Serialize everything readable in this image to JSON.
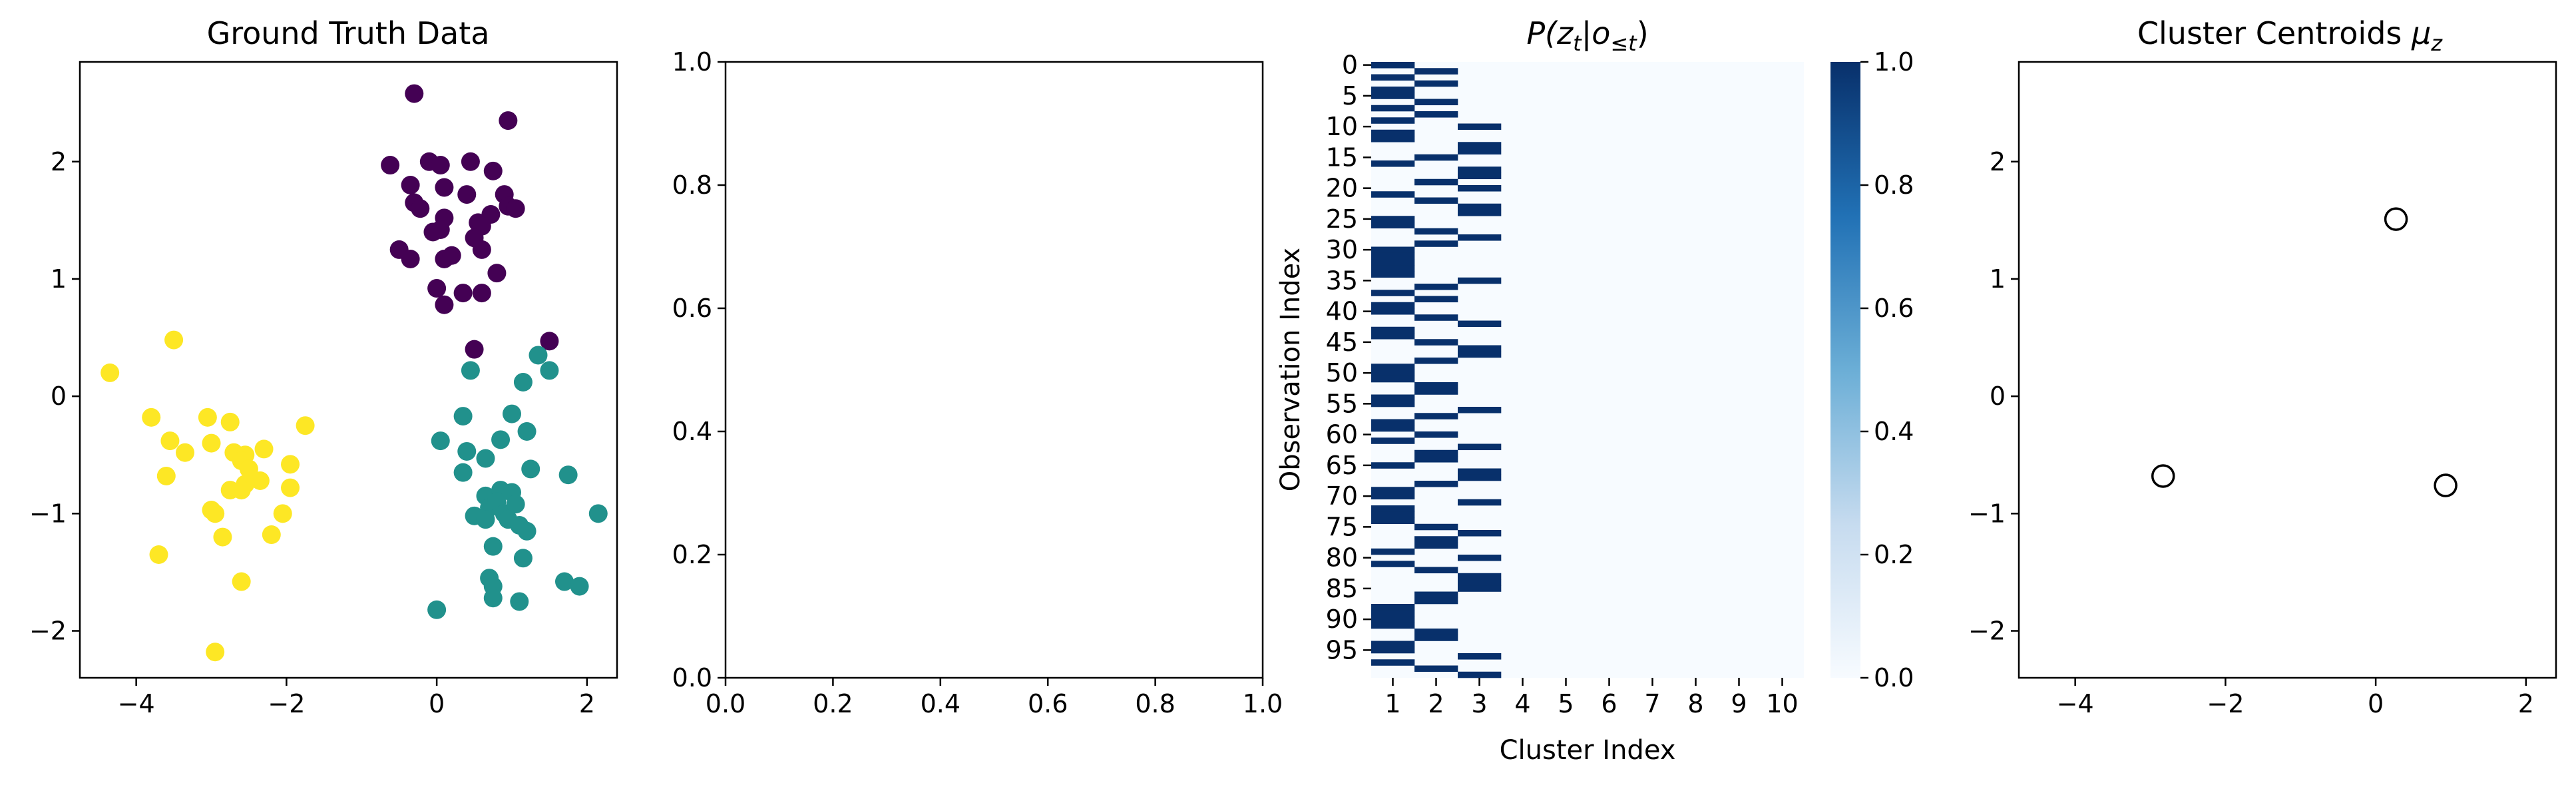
{
  "chart_data": [
    {
      "id": "ground-truth",
      "type": "scatter",
      "title": "Ground Truth Data",
      "xlim": [
        -4.75,
        2.4
      ],
      "ylim": [
        -2.4,
        2.85
      ],
      "xticks": [
        -4,
        -2,
        0,
        2
      ],
      "yticks": [
        -2,
        -1,
        0,
        1,
        2
      ],
      "xtick_labels": [
        "−4",
        "−2",
        "0",
        "2"
      ],
      "ytick_labels": [
        "−2",
        "−1",
        "0",
        "1",
        "2"
      ],
      "series": [
        {
          "color": "#440154",
          "points": [
            [
              -0.3,
              2.58
            ],
            [
              0.95,
              2.35
            ],
            [
              -0.62,
              1.97
            ],
            [
              -0.1,
              2.0
            ],
            [
              0.05,
              1.97
            ],
            [
              0.45,
              2.0
            ],
            [
              0.75,
              1.92
            ],
            [
              -0.35,
              1.8
            ],
            [
              0.1,
              1.78
            ],
            [
              -0.3,
              1.65
            ],
            [
              0.4,
              1.72
            ],
            [
              0.9,
              1.72
            ],
            [
              -0.22,
              1.6
            ],
            [
              0.72,
              1.55
            ],
            [
              0.95,
              1.62
            ],
            [
              1.05,
              1.6
            ],
            [
              0.1,
              1.52
            ],
            [
              0.55,
              1.48
            ],
            [
              0.6,
              1.45
            ],
            [
              -0.05,
              1.4
            ],
            [
              0.05,
              1.42
            ],
            [
              0.5,
              1.35
            ],
            [
              -0.5,
              1.25
            ],
            [
              -0.35,
              1.17
            ],
            [
              0.1,
              1.17
            ],
            [
              0.2,
              1.2
            ],
            [
              0.6,
              1.25
            ],
            [
              0.8,
              1.05
            ],
            [
              0.0,
              0.92
            ],
            [
              0.35,
              0.88
            ],
            [
              0.6,
              0.88
            ],
            [
              0.1,
              0.78
            ],
            [
              0.5,
              0.4
            ],
            [
              1.5,
              0.47
            ]
          ]
        },
        {
          "color": "#21918c",
          "points": [
            [
              0.45,
              0.22
            ],
            [
              1.35,
              0.35
            ],
            [
              1.5,
              0.22
            ],
            [
              1.15,
              0.12
            ],
            [
              0.35,
              -0.17
            ],
            [
              1.0,
              -0.15
            ],
            [
              0.05,
              -0.38
            ],
            [
              0.4,
              -0.47
            ],
            [
              0.85,
              -0.37
            ],
            [
              1.2,
              -0.3
            ],
            [
              0.65,
              -0.53
            ],
            [
              0.35,
              -0.65
            ],
            [
              1.25,
              -0.62
            ],
            [
              1.75,
              -0.67
            ],
            [
              0.65,
              -0.85
            ],
            [
              0.85,
              -0.8
            ],
            [
              1.0,
              -0.82
            ],
            [
              0.7,
              -0.95
            ],
            [
              0.8,
              -0.9
            ],
            [
              0.9,
              -1.0
            ],
            [
              1.05,
              -0.92
            ],
            [
              0.5,
              -1.02
            ],
            [
              0.65,
              -1.05
            ],
            [
              0.95,
              -1.05
            ],
            [
              1.1,
              -1.1
            ],
            [
              1.2,
              -1.15
            ],
            [
              2.15,
              -1.0
            ],
            [
              0.75,
              -1.28
            ],
            [
              1.15,
              -1.38
            ],
            [
              0.7,
              -1.55
            ],
            [
              0.75,
              -1.62
            ],
            [
              1.7,
              -1.58
            ],
            [
              1.9,
              -1.62
            ],
            [
              0.75,
              -1.72
            ],
            [
              1.1,
              -1.75
            ],
            [
              0.0,
              -1.82
            ]
          ]
        },
        {
          "color": "#fde725",
          "points": [
            [
              -4.35,
              0.2
            ],
            [
              -3.5,
              0.48
            ],
            [
              -3.8,
              -0.18
            ],
            [
              -3.05,
              -0.18
            ],
            [
              -2.75,
              -0.22
            ],
            [
              -1.75,
              -0.25
            ],
            [
              -3.55,
              -0.38
            ],
            [
              -3.0,
              -0.4
            ],
            [
              -3.35,
              -0.48
            ],
            [
              -2.7,
              -0.48
            ],
            [
              -2.55,
              -0.5
            ],
            [
              -2.3,
              -0.45
            ],
            [
              -2.6,
              -0.55
            ],
            [
              -1.95,
              -0.58
            ],
            [
              -2.5,
              -0.62
            ],
            [
              -3.6,
              -0.68
            ],
            [
              -2.35,
              -0.72
            ],
            [
              -2.55,
              -0.75
            ],
            [
              -2.75,
              -0.8
            ],
            [
              -2.6,
              -0.8
            ],
            [
              -1.95,
              -0.78
            ],
            [
              -3.0,
              -0.97
            ],
            [
              -2.95,
              -1.0
            ],
            [
              -2.05,
              -1.0
            ],
            [
              -2.85,
              -1.2
            ],
            [
              -2.2,
              -1.18
            ],
            [
              -3.7,
              -1.35
            ],
            [
              -2.6,
              -1.58
            ],
            [
              -2.95,
              -2.18
            ]
          ]
        }
      ]
    },
    {
      "id": "empty-axes",
      "type": "scatter",
      "xlim": [
        0,
        1
      ],
      "ylim": [
        0,
        1
      ],
      "xticks": [
        0.0,
        0.2,
        0.4,
        0.6,
        0.8,
        1.0
      ],
      "yticks": [
        0.0,
        0.2,
        0.4,
        0.6,
        0.8,
        1.0
      ],
      "xtick_labels": [
        "0.0",
        "0.2",
        "0.4",
        "0.6",
        "0.8",
        "1.0"
      ],
      "ytick_labels": [
        "0.0",
        "0.2",
        "0.4",
        "0.6",
        "0.8",
        "1.0"
      ],
      "series": []
    },
    {
      "id": "posterior-heatmap",
      "type": "heatmap",
      "title": "P(z_t | o_{≤t})",
      "xlabel": "Cluster Index",
      "ylabel": "Observation Index",
      "x_categories": [
        "1",
        "2",
        "3",
        "4",
        "5",
        "6",
        "7",
        "8",
        "9",
        "10"
      ],
      "y_tick_labels": [
        "0",
        "5",
        "10",
        "15",
        "20",
        "25",
        "30",
        "35",
        "40",
        "45",
        "50",
        "55",
        "60",
        "65",
        "70",
        "75",
        "80",
        "85",
        "90",
        "95"
      ],
      "n_rows": 100,
      "n_cols": 10,
      "assignments": [
        1,
        2,
        1,
        2,
        1,
        1,
        2,
        1,
        2,
        1,
        3,
        1,
        1,
        3,
        3,
        2,
        1,
        3,
        3,
        2,
        3,
        1,
        2,
        3,
        3,
        1,
        1,
        2,
        3,
        2,
        1,
        1,
        1,
        1,
        1,
        3,
        2,
        1,
        2,
        1,
        1,
        2,
        3,
        1,
        1,
        2,
        3,
        3,
        2,
        1,
        1,
        1,
        2,
        2,
        1,
        1,
        3,
        2,
        1,
        1,
        2,
        1,
        3,
        2,
        2,
        1,
        3,
        3,
        2,
        1,
        1,
        3,
        1,
        1,
        1,
        2,
        3,
        2,
        2,
        1,
        3,
        1,
        2,
        3,
        3,
        3,
        2,
        2,
        1,
        1,
        1,
        1,
        2,
        2,
        1,
        1,
        3,
        1,
        2,
        3
      ],
      "colorbar": {
        "vmin": 0,
        "vmax": 1,
        "ticks": [
          0.0,
          0.2,
          0.4,
          0.6,
          0.8,
          1.0
        ],
        "tick_labels": [
          "0.0",
          "0.2",
          "0.4",
          "0.6",
          "0.8",
          "1.0"
        ],
        "color_low": "#f7fbff",
        "color_high": "#08306b"
      }
    },
    {
      "id": "cluster-centroids",
      "type": "scatter",
      "title": "Cluster Centroids μ_z",
      "xlim": [
        -4.75,
        2.4
      ],
      "ylim": [
        -2.4,
        2.85
      ],
      "xticks": [
        -4,
        -2,
        0,
        2
      ],
      "yticks": [
        -2,
        -1,
        0,
        1,
        2
      ],
      "xtick_labels": [
        "−4",
        "−2",
        "0",
        "2"
      ],
      "ytick_labels": [
        "−2",
        "−1",
        "0",
        "1",
        "2"
      ],
      "series": [
        {
          "color": "none",
          "marker": "open-circle",
          "points": [
            [
              0.27,
              1.51
            ],
            [
              -2.83,
              -0.68
            ],
            [
              0.93,
              -0.76
            ]
          ]
        }
      ]
    }
  ]
}
